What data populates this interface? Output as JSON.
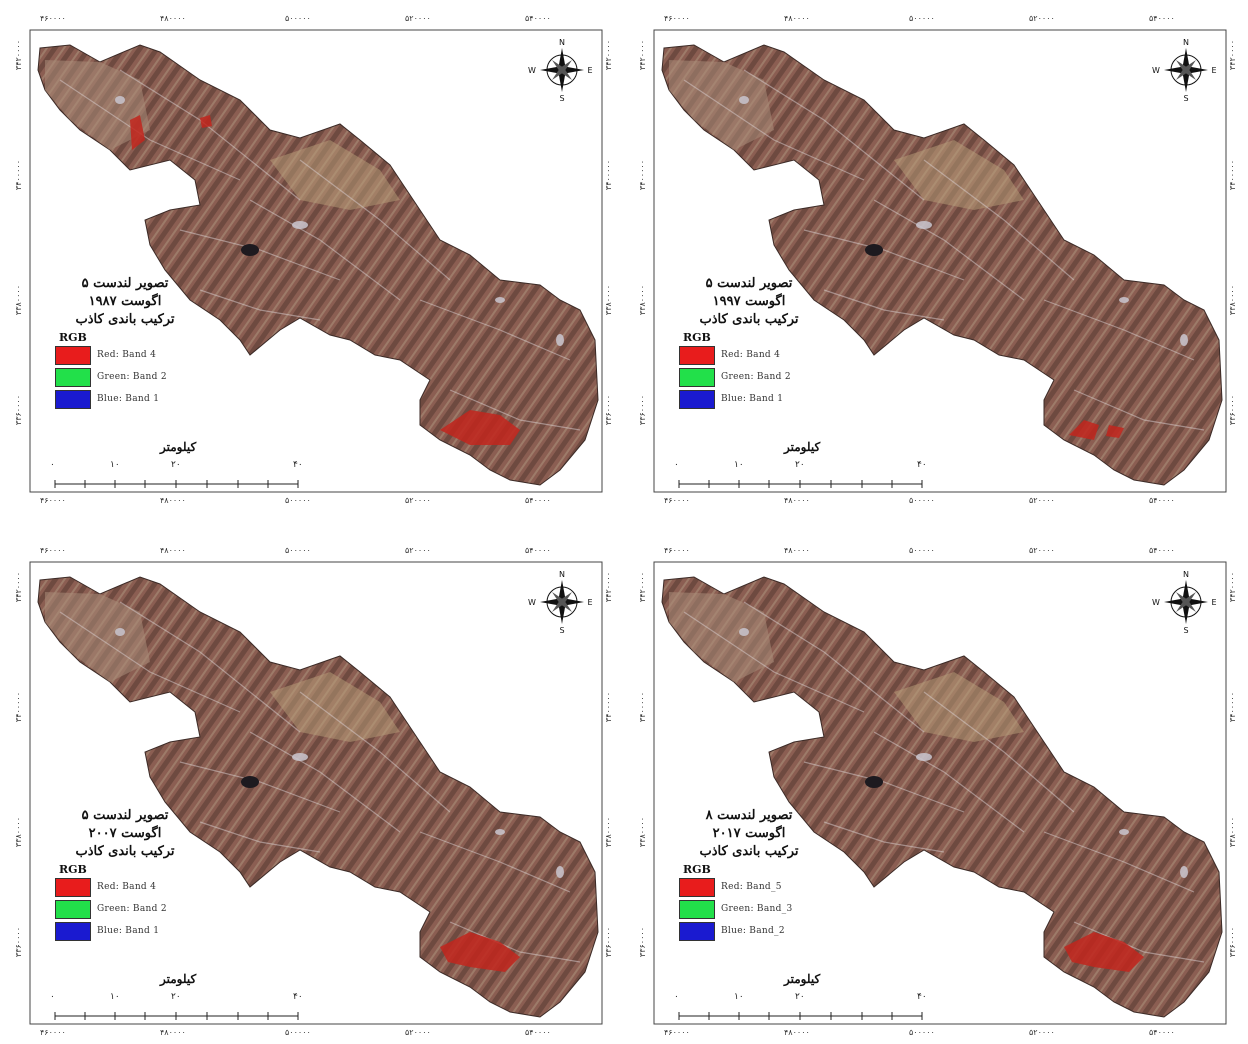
{
  "map_panels": [
    {
      "title_line1": "تصویر لندست ۵",
      "title_line2": "اگوست ۱۹۸۷",
      "title_line3": "ترکیب باندی کاذب",
      "rgb_label": "RGB",
      "bands": [
        {
          "label": "Red:   Band 4",
          "color": "#e81c1c"
        },
        {
          "label": "Green: Band 2",
          "color": "#22e04a"
        },
        {
          "label": "Blue:  Band 1",
          "color": "#1a1ad0"
        }
      ],
      "scale_title": "کیلومتر",
      "scale_ticks": [
        "۰",
        "۱۰",
        "۲۰",
        "۴۰"
      ],
      "top_coords": [
        "۴۶۰۰۰۰",
        "۴۸۰۰۰۰",
        "۵۰۰۰۰۰",
        "۵۲۰۰۰۰",
        "۵۴۰۰۰۰"
      ],
      "bottom_coords": [
        "۴۶۰۰۰۰",
        "۴۸۰۰۰۰",
        "۵۰۰۰۰۰",
        "۵۲۰۰۰۰",
        "۵۴۰۰۰۰"
      ],
      "side_coords": [
        "۳۴۲۰۰۰۰",
        "۳۴۰۰۰۰۰",
        "۳۳۸۰۰۰۰",
        "۳۳۶۰۰۰۰"
      ],
      "red_patches": "high"
    },
    {
      "title_line1": "تصویر لندست ۵",
      "title_line2": "اگوست ۱۹۹۷",
      "title_line3": "ترکیب باندی کاذب",
      "rgb_label": "RGB",
      "bands": [
        {
          "label": "Red:   Band 4",
          "color": "#e81c1c"
        },
        {
          "label": "Green: Band 2",
          "color": "#22e04a"
        },
        {
          "label": "Blue:  Band 1",
          "color": "#1a1ad0"
        }
      ],
      "scale_title": "کیلومتر",
      "scale_ticks": [
        "۰",
        "۱۰",
        "۲۰",
        "۴۰"
      ],
      "top_coords": [
        "۴۶۰۰۰۰",
        "۴۸۰۰۰۰",
        "۵۰۰۰۰۰",
        "۵۲۰۰۰۰",
        "۵۴۰۰۰۰"
      ],
      "bottom_coords": [
        "۴۶۰۰۰۰",
        "۴۸۰۰۰۰",
        "۵۰۰۰۰۰",
        "۵۲۰۰۰۰",
        "۵۴۰۰۰۰"
      ],
      "side_coords": [
        "۳۴۲۰۰۰۰",
        "۳۴۰۰۰۰۰",
        "۳۳۸۰۰۰۰",
        "۳۳۶۰۰۰۰"
      ],
      "red_patches": "low"
    },
    {
      "title_line1": "تصویر لندست ۵",
      "title_line2": "اگوست ۲۰۰۷",
      "title_line3": "ترکیب باندی کاذب",
      "rgb_label": "RGB",
      "bands": [
        {
          "label": "Red:   Band 4",
          "color": "#e81c1c"
        },
        {
          "label": "Green: Band 2",
          "color": "#22e04a"
        },
        {
          "label": "Blue:  Band 1",
          "color": "#1a1ad0"
        }
      ],
      "scale_title": "کیلومتر",
      "scale_ticks": [
        "۰",
        "۱۰",
        "۲۰",
        "۴۰"
      ],
      "top_coords": [
        "۴۶۰۰۰۰",
        "۴۸۰۰۰۰",
        "۵۰۰۰۰۰",
        "۵۲۰۰۰۰",
        "۵۴۰۰۰۰"
      ],
      "bottom_coords": [
        "۴۶۰۰۰۰",
        "۴۸۰۰۰۰",
        "۵۰۰۰۰۰",
        "۵۲۰۰۰۰",
        "۵۴۰۰۰۰"
      ],
      "side_coords": [
        "۳۴۲۰۰۰۰",
        "۳۴۰۰۰۰۰",
        "۳۳۸۰۰۰۰",
        "۳۳۶۰۰۰۰"
      ],
      "red_patches": "medium"
    },
    {
      "title_line1": "تصویر لندست ۸",
      "title_line2": "اگوست ۲۰۱۷",
      "title_line3": "ترکیب باندی کاذب",
      "rgb_label": "RGB",
      "bands": [
        {
          "label": "Red:   Band_5",
          "color": "#e81c1c"
        },
        {
          "label": "Green: Band_3",
          "color": "#22e04a"
        },
        {
          "label": "Blue:  Band_2",
          "color": "#1a1ad0"
        }
      ],
      "scale_title": "کیلومتر",
      "scale_ticks": [
        "۰",
        "۱۰",
        "۲۰",
        "۴۰"
      ],
      "top_coords": [
        "۴۶۰۰۰۰",
        "۴۸۰۰۰۰",
        "۵۰۰۰۰۰",
        "۵۲۰۰۰۰",
        "۵۴۰۰۰۰"
      ],
      "bottom_coords": [
        "۴۶۰۰۰۰",
        "۴۸۰۰۰۰",
        "۵۰۰۰۰۰",
        "۵۲۰۰۰۰",
        "۵۴۰۰۰۰"
      ],
      "side_coords": [
        "۳۴۲۰۰۰۰",
        "۳۴۰۰۰۰۰",
        "۳۳۸۰۰۰۰",
        "۳۳۶۰۰۰۰"
      ],
      "red_patches": "medium"
    }
  ],
  "compass": {
    "n": "N",
    "s": "S",
    "e": "E",
    "w": "W",
    "icon": "north-arrow-compass-rose-icon"
  },
  "colors": {
    "terrain_dark": "#6e4a40",
    "terrain_mid": "#8b5e52",
    "terrain_light": "#a98d78",
    "snow": "#c9c6cf",
    "vegetation": "#c2261d"
  }
}
